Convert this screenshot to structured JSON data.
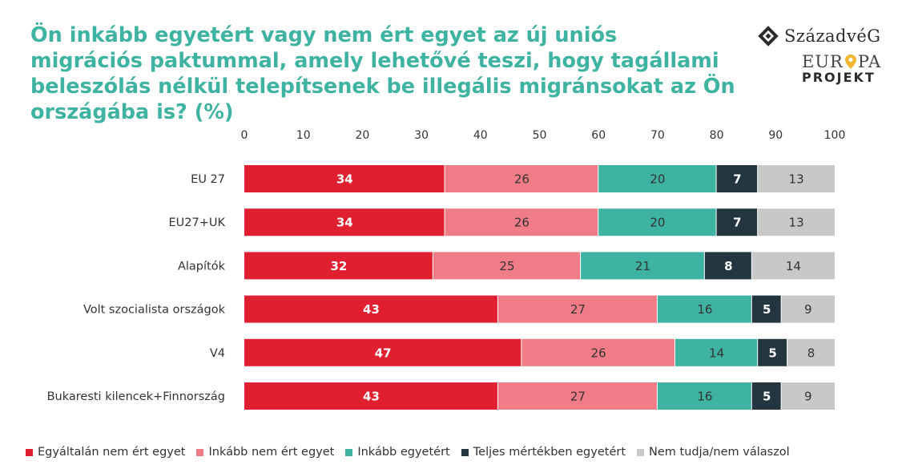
{
  "logo": {
    "name": "SzázadvéG",
    "europa": [
      "EUR",
      "PA"
    ],
    "projekt": "PROJEKT"
  },
  "chart_data": {
    "type": "bar",
    "orientation": "horizontal",
    "stacked": true,
    "title": "Ön inkább egyetért vagy nem ért egyet az új uniós migrációs paktummal, amely lehetővé teszi, hogy tagállami beleszólás nélkül telepítsenek be illegális migránsokat az Ön országába is? (%)",
    "xlim": [
      0,
      100
    ],
    "x_ticks": [
      0,
      10,
      20,
      30,
      40,
      50,
      60,
      70,
      80,
      90,
      100
    ],
    "x_axis_position": "top",
    "grid": false,
    "legend_position": "bottom",
    "categories": [
      "EU 27",
      "EU27+UK",
      "Alapítók",
      "Volt szocialista országok",
      "V4",
      "Bukaresti kilencek+Finnország"
    ],
    "series": [
      {
        "name": "Egyáltalán nem ért egyet",
        "color": "#e02030",
        "label_color": "#ffffff",
        "values": [
          34,
          34,
          32,
          43,
          47,
          43
        ]
      },
      {
        "name": "Inkább nem ért egyet",
        "color": "#f07c87",
        "label_color": "#333333",
        "values": [
          26,
          26,
          25,
          27,
          26,
          27
        ]
      },
      {
        "name": "Inkább egyetért",
        "color": "#3fb3a1",
        "label_color": "#333333",
        "values": [
          20,
          20,
          21,
          16,
          14,
          16
        ]
      },
      {
        "name": "Teljes mértékben egyetért",
        "color": "#233640",
        "label_color": "#ffffff",
        "values": [
          7,
          7,
          8,
          5,
          5,
          5
        ]
      },
      {
        "name": "Nem tudja/nem válaszol",
        "color": "#c8c8c8",
        "label_color": "#333333",
        "values": [
          13,
          13,
          14,
          9,
          8,
          9
        ]
      }
    ]
  }
}
